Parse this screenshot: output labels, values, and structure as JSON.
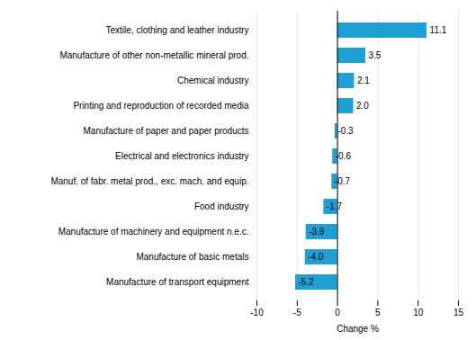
{
  "chart_data": {
    "type": "bar",
    "orientation": "horizontal",
    "categories": [
      "Manufacture of transport equipment",
      "Manufacture of basic metals",
      "Manufacture of machinery and equipment n.e.c.",
      "Food industry",
      "Manuf. of fabr. metal prod., exc. mach. and equip.",
      "Electrical and electronics industry",
      "Manufacture of paper and paper products",
      "Printing and reproduction of recorded media",
      "Chemical industry",
      "Manufacture of other non-metallic mineral prod.",
      "Textile, clothing and leather industry"
    ],
    "values": [
      -5.2,
      -4.0,
      -3.9,
      -1.7,
      -0.7,
      -0.6,
      -0.3,
      2.0,
      2.1,
      3.5,
      11.1
    ],
    "value_labels": [
      "-5.2",
      "-4.0",
      "-3.9",
      "-1.7",
      "-0.7",
      "-0.6",
      "-0.3",
      "2.0",
      "2.1",
      "3.5",
      "11.1"
    ],
    "color": "#1f9fd4",
    "xlabel": "Change %",
    "xlim": [
      -10,
      15
    ],
    "xticks": [
      -10,
      -5,
      0,
      5,
      10,
      15
    ],
    "grid": true,
    "data_labels": true
  }
}
